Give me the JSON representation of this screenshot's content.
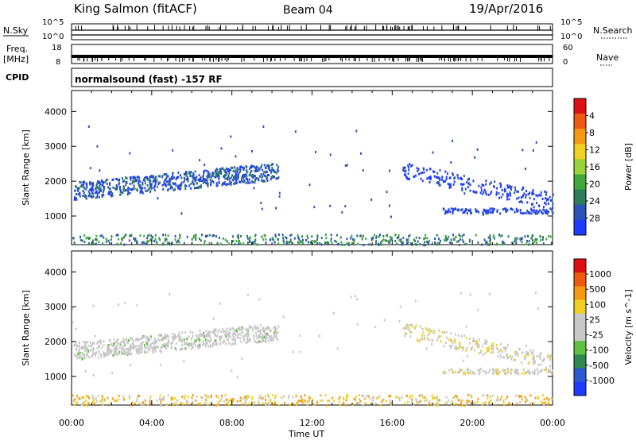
{
  "header": {
    "station": "King Salmon (fitACF)",
    "beam": "Beam 04",
    "date": "19/Apr/2016"
  },
  "left_labels": {
    "nsky": "N.Sky",
    "freq_line1": "Freq.",
    "freq_line2": "[MHz]",
    "cpid": "CPID"
  },
  "right_labels": {
    "nsearch": "N.Search",
    "nave": "Nave"
  },
  "strip_ticks": {
    "nsky_left": [
      "10^5",
      "10^0"
    ],
    "nsky_right": [
      "10^5",
      "10^0"
    ],
    "freq_left": [
      "18",
      "8"
    ],
    "nave_right": [
      "60",
      "0"
    ]
  },
  "cpid_text": "normalsound (fast) -157 RF",
  "chart_data": [
    {
      "type": "heatmap",
      "panel": "power",
      "ylabel": "Slant Range [km]",
      "xlabel": "Time UT",
      "yticks": [
        1000,
        2000,
        3000,
        4000
      ],
      "ylim": [
        180,
        4600
      ],
      "xlim": [
        0,
        24
      ],
      "xticks_labels": [
        "00:00",
        "04:00",
        "08:00",
        "12:00",
        "16:00",
        "20:00",
        "00:00"
      ],
      "colorbar": {
        "label": "Power [dB]",
        "ticks": [
          "4",
          "8",
          "12",
          "16",
          "20",
          "24",
          "28"
        ],
        "colors": [
          "#1e3cff",
          "#2a52b8",
          "#2e7d5a",
          "#3ea83a",
          "#9ad23a",
          "#f0d020",
          "#f59a10",
          "#f05a10",
          "#e01010"
        ]
      },
      "echo_regions": [
        {
          "name": "dayside-band",
          "t": [
            0.1,
            10.3
          ],
          "r": [
            1500,
            2700
          ],
          "level": 1
        },
        {
          "name": "near-range",
          "t": [
            0,
            24
          ],
          "r": [
            200,
            500
          ],
          "level": 2
        },
        {
          "name": "evening-band",
          "t": [
            16.5,
            24
          ],
          "r": [
            1300,
            2600
          ],
          "level": 0
        },
        {
          "name": "late-1200km",
          "t": [
            18.5,
            24
          ],
          "r": [
            1100,
            1250
          ],
          "level": 0
        }
      ]
    },
    {
      "type": "heatmap",
      "panel": "velocity",
      "ylabel": "Slant Range [km]",
      "xlabel": "Time UT",
      "yticks": [
        1000,
        2000,
        3000,
        4000
      ],
      "ylim": [
        180,
        4600
      ],
      "xlim": [
        0,
        24
      ],
      "xticks_labels": [
        "00:00",
        "04:00",
        "08:00",
        "12:00",
        "16:00",
        "20:00",
        "00:00"
      ],
      "colorbar": {
        "label": "Velocity [m s^-1]",
        "ticks": [
          "1000",
          "500",
          "100",
          "25",
          "-25",
          "-100",
          "-500",
          "-1000"
        ],
        "colors": [
          "#1e3cff",
          "#2a5ad0",
          "#2e8a4e",
          "#60c040",
          "#c8c8c8",
          "#c8c8c8",
          "#f0d020",
          "#f59a10",
          "#f05a10",
          "#e01010"
        ]
      },
      "echo_regions": [
        {
          "name": "dayside-band",
          "t": [
            0.1,
            10.3
          ],
          "r": [
            1500,
            2700
          ],
          "level": 4
        },
        {
          "name": "near-range",
          "t": [
            0,
            24
          ],
          "r": [
            200,
            500
          ],
          "level": 6
        },
        {
          "name": "evening-band",
          "t": [
            16.5,
            24
          ],
          "r": [
            1300,
            2600
          ],
          "level": 5
        },
        {
          "name": "late-1200km",
          "t": [
            18.5,
            24
          ],
          "r": [
            1100,
            1250
          ],
          "level": 5
        }
      ]
    }
  ]
}
